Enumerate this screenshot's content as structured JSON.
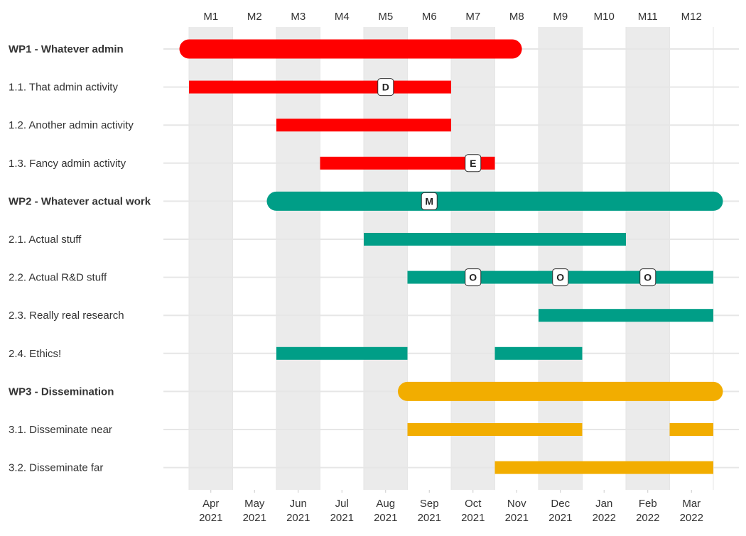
{
  "chart_data": {
    "type": "gantt",
    "months": [
      "M1",
      "M2",
      "M3",
      "M4",
      "M5",
      "M6",
      "M7",
      "M8",
      "M9",
      "M10",
      "M11",
      "M12"
    ],
    "date_ticks": [
      {
        "month": "Apr",
        "year": "2021"
      },
      {
        "month": "May",
        "year": "2021"
      },
      {
        "month": "Jun",
        "year": "2021"
      },
      {
        "month": "Jul",
        "year": "2021"
      },
      {
        "month": "Aug",
        "year": "2021"
      },
      {
        "month": "Sep",
        "year": "2021"
      },
      {
        "month": "Oct",
        "year": "2021"
      },
      {
        "month": "Nov",
        "year": "2021"
      },
      {
        "month": "Dec",
        "year": "2021"
      },
      {
        "month": "Jan",
        "year": "2022"
      },
      {
        "month": "Feb",
        "year": "2022"
      },
      {
        "month": "Mar",
        "year": "2022"
      }
    ],
    "shaded_months": [
      1,
      3,
      5,
      7,
      9,
      11
    ],
    "colors": {
      "WP1": "#ff0000",
      "WP2": "#009e87",
      "WP3": "#f2ad00",
      "shade": "#ebebeb",
      "grid": "#e6e6e6"
    },
    "rows": [
      {
        "label": "WP1 - Whatever admin",
        "wp": true,
        "group": "WP1",
        "segments": [
          [
            1.0,
            8.4
          ]
        ],
        "milestones": []
      },
      {
        "label": "1.1. That admin activity",
        "wp": false,
        "group": "WP1",
        "segments": [
          [
            1.0,
            7.0
          ]
        ],
        "milestones": [
          {
            "at": 5.5,
            "text": "D"
          }
        ]
      },
      {
        "label": "1.2. Another admin activity",
        "wp": false,
        "group": "WP1",
        "segments": [
          [
            3.0,
            7.0
          ]
        ],
        "milestones": []
      },
      {
        "label": "1.3. Fancy admin activity",
        "wp": false,
        "group": "WP1",
        "segments": [
          [
            4.0,
            8.0
          ]
        ],
        "milestones": [
          {
            "at": 7.5,
            "text": "E"
          }
        ]
      },
      {
        "label": "WP2 - Whatever actual work",
        "wp": true,
        "group": "WP2",
        "segments": [
          [
            3.0,
            13.0
          ]
        ],
        "milestones": [
          {
            "at": 6.5,
            "text": "M"
          }
        ]
      },
      {
        "label": "2.1. Actual stuff",
        "wp": false,
        "group": "WP2",
        "segments": [
          [
            5.0,
            11.0
          ]
        ],
        "milestones": []
      },
      {
        "label": "2.2. Actual R&D stuff",
        "wp": false,
        "group": "WP2",
        "segments": [
          [
            6.0,
            13.0
          ]
        ],
        "milestones": [
          {
            "at": 7.5,
            "text": "O"
          },
          {
            "at": 9.5,
            "text": "O"
          },
          {
            "at": 11.5,
            "text": "O"
          }
        ]
      },
      {
        "label": "2.3. Really real research",
        "wp": false,
        "group": "WP2",
        "segments": [
          [
            9.0,
            13.0
          ]
        ],
        "milestones": []
      },
      {
        "label": "2.4. Ethics!",
        "wp": false,
        "group": "WP2",
        "segments": [
          [
            3.0,
            6.0
          ],
          [
            8.0,
            10.0
          ]
        ],
        "milestones": []
      },
      {
        "label": "WP3 - Dissemination",
        "wp": true,
        "group": "WP3",
        "segments": [
          [
            6.0,
            13.0
          ]
        ],
        "milestones": []
      },
      {
        "label": "3.1. Disseminate near",
        "wp": false,
        "group": "WP3",
        "segments": [
          [
            6.0,
            10.0
          ],
          [
            12.0,
            13.0
          ]
        ],
        "milestones": []
      },
      {
        "label": "3.2. Disseminate far",
        "wp": false,
        "group": "WP3",
        "segments": [
          [
            8.0,
            13.0
          ]
        ],
        "milestones": []
      }
    ]
  }
}
